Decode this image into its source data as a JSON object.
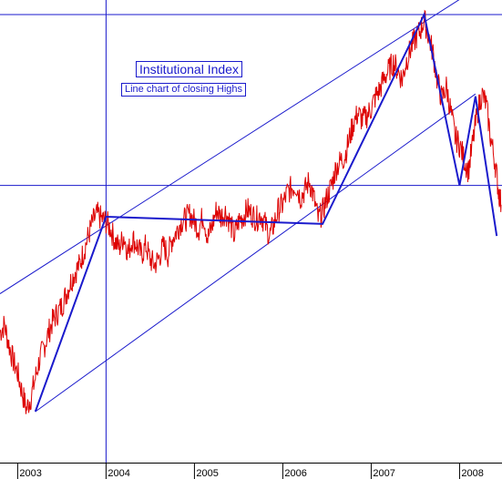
{
  "chart_data": {
    "type": "line",
    "title": "Institutional Index",
    "subtitle": "Line chart of closing Highs",
    "x_tick_labels": [
      "2003",
      "2004",
      "2005",
      "2006",
      "2007",
      "2008"
    ],
    "x_tick_values": [
      2003.0,
      2004.0,
      2005.0,
      2006.0,
      2007.0,
      2008.0
    ],
    "xlim": [
      2002.8,
      2008.48
    ],
    "ylim": [
      0,
      100
    ],
    "grid": false,
    "legend": "none",
    "colors": {
      "price": "#dd0000",
      "trend": "#1a1acc",
      "background": "#ffffff"
    },
    "series": [
      {
        "style": "red-price-line",
        "points": [
          [
            2002.8,
            30.5
          ],
          [
            2002.85,
            32.0
          ],
          [
            2002.9,
            28.0
          ],
          [
            2002.95,
            24.5
          ],
          [
            2003.0,
            22.0
          ],
          [
            2003.05,
            18.0
          ],
          [
            2003.1,
            14.5
          ],
          [
            2003.15,
            17.0
          ],
          [
            2003.2,
            21.0
          ],
          [
            2003.25,
            25.0
          ],
          [
            2003.3,
            27.5
          ],
          [
            2003.35,
            30.5
          ],
          [
            2003.4,
            33.0
          ],
          [
            2003.45,
            34.5
          ],
          [
            2003.5,
            36.0
          ],
          [
            2003.55,
            38.5
          ],
          [
            2003.6,
            41.0
          ],
          [
            2003.65,
            43.0
          ],
          [
            2003.7,
            44.5
          ],
          [
            2003.75,
            47.5
          ],
          [
            2003.8,
            50.5
          ],
          [
            2003.85,
            53.5
          ],
          [
            2003.9,
            55.0
          ],
          [
            2003.95,
            54.0
          ],
          [
            2004.0,
            53.5
          ],
          [
            2004.05,
            52.0
          ],
          [
            2004.1,
            49.5
          ],
          [
            2004.15,
            48.0
          ],
          [
            2004.2,
            50.5
          ],
          [
            2004.25,
            47.0
          ],
          [
            2004.3,
            50.0
          ],
          [
            2004.35,
            48.5
          ],
          [
            2004.4,
            46.5
          ],
          [
            2004.45,
            48.5
          ],
          [
            2004.5,
            45.5
          ],
          [
            2004.55,
            44.5
          ],
          [
            2004.6,
            46.0
          ],
          [
            2004.65,
            48.5
          ],
          [
            2004.7,
            46.5
          ],
          [
            2004.75,
            50.0
          ],
          [
            2004.8,
            51.5
          ],
          [
            2004.85,
            53.5
          ],
          [
            2004.9,
            54.0
          ],
          [
            2004.95,
            55.0
          ],
          [
            2005.0,
            53.5
          ],
          [
            2005.05,
            52.0
          ],
          [
            2005.1,
            55.0
          ],
          [
            2005.15,
            50.0
          ],
          [
            2005.2,
            52.5
          ],
          [
            2005.25,
            56.0
          ],
          [
            2005.3,
            54.5
          ],
          [
            2005.35,
            55.5
          ],
          [
            2005.4,
            53.5
          ],
          [
            2005.45,
            50.5
          ],
          [
            2005.5,
            53.5
          ],
          [
            2005.55,
            54.5
          ],
          [
            2005.6,
            56.0
          ],
          [
            2005.65,
            55.0
          ],
          [
            2005.7,
            54.0
          ],
          [
            2005.75,
            55.0
          ],
          [
            2005.8,
            53.0
          ],
          [
            2005.85,
            50.5
          ],
          [
            2005.9,
            53.0
          ],
          [
            2005.95,
            56.0
          ],
          [
            2006.0,
            57.0
          ],
          [
            2006.05,
            59.5
          ],
          [
            2006.1,
            60.5
          ],
          [
            2006.15,
            61.0
          ],
          [
            2006.2,
            58.5
          ],
          [
            2006.25,
            60.0
          ],
          [
            2006.3,
            62.0
          ],
          [
            2006.35,
            58.5
          ],
          [
            2006.4,
            54.0
          ],
          [
            2006.45,
            55.5
          ],
          [
            2006.5,
            58.5
          ],
          [
            2006.55,
            61.0
          ],
          [
            2006.6,
            64.5
          ],
          [
            2006.65,
            66.0
          ],
          [
            2006.7,
            67.0
          ],
          [
            2006.75,
            70.5
          ],
          [
            2006.8,
            74.0
          ],
          [
            2006.85,
            76.0
          ],
          [
            2006.9,
            74.5
          ],
          [
            2006.95,
            75.5
          ],
          [
            2007.0,
            77.0
          ],
          [
            2007.05,
            79.5
          ],
          [
            2007.1,
            81.0
          ],
          [
            2007.15,
            83.5
          ],
          [
            2007.2,
            85.0
          ],
          [
            2007.25,
            86.5
          ],
          [
            2007.3,
            85.0
          ],
          [
            2007.35,
            83.0
          ],
          [
            2007.4,
            87.0
          ],
          [
            2007.45,
            89.5
          ],
          [
            2007.5,
            91.5
          ],
          [
            2007.55,
            93.0
          ],
          [
            2007.6,
            95.5
          ],
          [
            2007.65,
            92.0
          ],
          [
            2007.7,
            88.5
          ],
          [
            2007.75,
            82.5
          ],
          [
            2007.8,
            79.0
          ],
          [
            2007.85,
            81.5
          ],
          [
            2007.9,
            76.5
          ],
          [
            2007.95,
            71.0
          ],
          [
            2008.0,
            69.5
          ],
          [
            2008.05,
            66.5
          ],
          [
            2008.1,
            64.0
          ],
          [
            2008.15,
            70.0
          ],
          [
            2008.2,
            76.0
          ],
          [
            2008.25,
            80.0
          ],
          [
            2008.3,
            78.0
          ],
          [
            2008.35,
            71.0
          ],
          [
            2008.4,
            66.0
          ],
          [
            2008.44,
            60.0
          ],
          [
            2008.47,
            57.0
          ]
        ]
      },
      {
        "style": "blue-zigzag",
        "points": [
          [
            2003.2,
            14.0
          ],
          [
            2004.0,
            54.5
          ],
          [
            2006.45,
            53.0
          ],
          [
            2007.6,
            96.5
          ],
          [
            2008.0,
            61.0
          ],
          [
            2008.18,
            79.5
          ],
          [
            2008.42,
            50.5
          ]
        ]
      }
    ],
    "reference_lines": [
      {
        "kind": "horizontal",
        "y": 96.5,
        "from_x": 2002.8,
        "to_x": 2008.48
      },
      {
        "kind": "horizontal",
        "y": 61.0,
        "from_x": 2002.8,
        "to_x": 2008.48
      },
      {
        "kind": "vertical",
        "x": 2004.0,
        "from_y": 0,
        "to_y": 102
      }
    ],
    "trendlines": [
      {
        "from": [
          2002.8,
          38.5
        ],
        "to": [
          2008.2,
          102.0
        ]
      },
      {
        "from": [
          2003.2,
          14.0
        ],
        "to": [
          2008.18,
          80.0
        ]
      }
    ]
  }
}
